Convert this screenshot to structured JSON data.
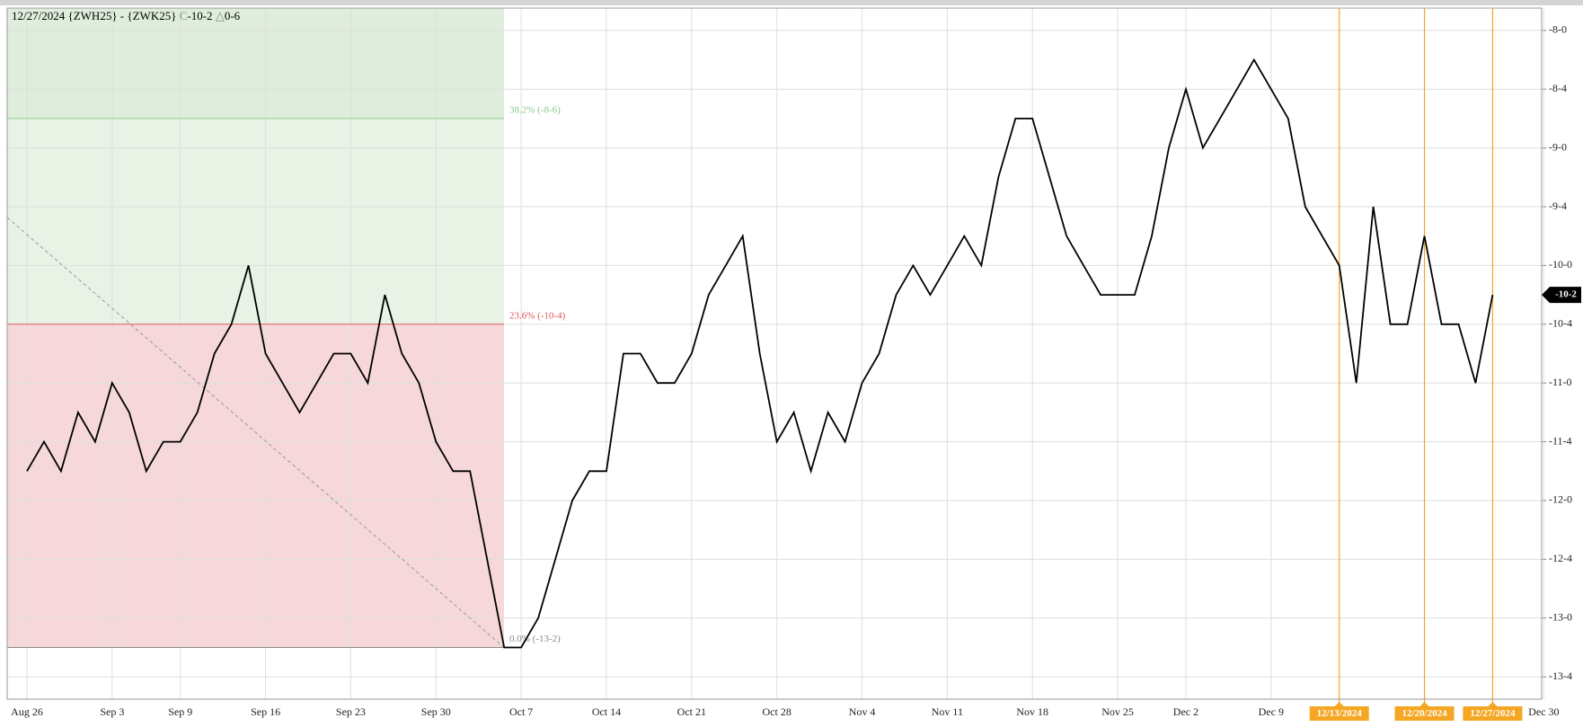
{
  "chart_data": {
    "type": "line",
    "title": "12/27/2024 {ZWH25} - {ZWK25}",
    "close_label": "C",
    "close": "-10-2",
    "change_label": "△",
    "change": "0-6",
    "categories": [
      "Aug 26",
      null,
      null,
      null,
      null,
      "Sep 3",
      null,
      null,
      null,
      "Sep 9",
      null,
      null,
      null,
      null,
      "Sep 16",
      null,
      null,
      null,
      null,
      "Sep 23",
      null,
      null,
      null,
      null,
      "Sep 30",
      null,
      null,
      null,
      null,
      "Oct 7",
      null,
      null,
      null,
      null,
      "Oct 14",
      null,
      null,
      null,
      null,
      "Oct 21",
      null,
      null,
      null,
      null,
      "Oct 28",
      null,
      null,
      null,
      null,
      "Nov 4",
      null,
      null,
      null,
      null,
      "Nov 11",
      null,
      null,
      null,
      null,
      "Nov 18",
      null,
      null,
      null,
      null,
      "Nov 25",
      null,
      null,
      null,
      "Dec 2",
      null,
      null,
      null,
      null,
      "Dec 9",
      null,
      null,
      null,
      null,
      null,
      null,
      null,
      null,
      null,
      null,
      null,
      null,
      null,
      null,
      null,
      "Dec 30"
    ],
    "series": [
      {
        "name": "{ZWH25} - {ZWK25}",
        "color": "#000000",
        "values": [
          -11.75,
          -11.5,
          -11.75,
          -11.25,
          -11.5,
          -11,
          -11.25,
          -11.75,
          -11.5,
          -11.5,
          -11.25,
          -10.75,
          -10.5,
          -10,
          -10.75,
          -11,
          -11.25,
          -11,
          -10.75,
          -10.75,
          -11,
          -10.25,
          -10.75,
          -11,
          -11.5,
          -11.75,
          -11.75,
          -12.5,
          -13.25,
          -13.25,
          -13,
          -12.5,
          -12,
          -11.75,
          -11.75,
          -10.75,
          -10.75,
          -11,
          -11,
          -10.75,
          -10.25,
          -10,
          -9.75,
          -10.75,
          -11.5,
          -11.25,
          -11.75,
          -11.25,
          -11.5,
          -11,
          -10.75,
          -10.25,
          -10,
          -10.25,
          -10,
          -9.75,
          -10,
          -9.25,
          -8.75,
          -8.75,
          -9.25,
          -9.75,
          -10,
          -10.25,
          -10.25,
          -10.25,
          -9.75,
          -9,
          -8.5,
          -9,
          -8.75,
          -8.5,
          -8.25,
          -8.5,
          -8.75,
          -9.5,
          -9.75,
          -10,
          -11,
          -9.5,
          -10.5,
          -10.5,
          -9.75,
          -10.5,
          -10.5,
          -11,
          -10.25,
          null,
          null,
          null
        ]
      }
    ],
    "ylim": [
      -13.69,
      -7.81
    ],
    "yticks": [
      {
        "value": -8,
        "label": "-8-0"
      },
      {
        "value": -8.5,
        "label": "-8-4"
      },
      {
        "value": -9,
        "label": "-9-0"
      },
      {
        "value": -9.5,
        "label": "-9-4"
      },
      {
        "value": -10,
        "label": "-10-0"
      },
      {
        "value": -10.5,
        "label": "-10-4"
      },
      {
        "value": -11,
        "label": "-11-0"
      },
      {
        "value": -11.5,
        "label": "-11-4"
      },
      {
        "value": -12,
        "label": "-12-0"
      },
      {
        "value": -12.5,
        "label": "-12-4"
      },
      {
        "value": -13,
        "label": "-13-0"
      },
      {
        "value": -13.5,
        "label": "-13-4"
      }
    ],
    "grid": true,
    "fib_levels": [
      {
        "label": "38.2% (-8-6)",
        "value": -8.75,
        "color": "#8cc98a"
      },
      {
        "label": "23.6% (-10-4)",
        "value": -10.5,
        "color": "#e05a5a"
      },
      {
        "label": "0.0% (-13-2)",
        "value": -13.25,
        "color": "#8a8a8a"
      }
    ],
    "last": {
      "value": -10.25,
      "label": "-10-2"
    },
    "markers": [
      "12/13/2024",
      "12/20/2024",
      "12/27/2024"
    ],
    "marker_color": "#f5a623"
  }
}
